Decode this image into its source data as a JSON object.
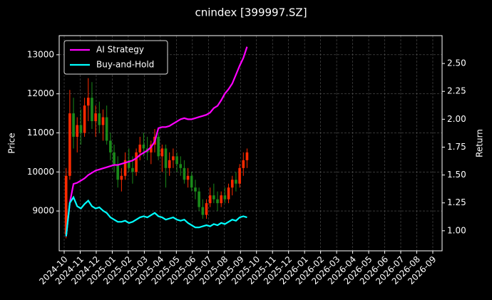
{
  "chart_data": {
    "type": "candlestick",
    "title": "cnindex [399997.SZ]",
    "ylabel": "Price",
    "y2label": "Return",
    "x": [
      2024.76,
      2024.7792,
      2024.7984,
      2024.8176,
      2024.8368,
      2024.856,
      2024.8752,
      2024.8944,
      2024.9136,
      2024.9328,
      2024.952,
      2024.9712,
      2024.9904,
      2025.0096,
      2025.0288,
      2025.048,
      2025.0672,
      2025.0864,
      2025.1056,
      2025.1248,
      2025.144,
      2025.1632,
      2025.1824,
      2025.2016,
      2025.2208,
      2025.24,
      2025.2592,
      2025.2784,
      2025.2976,
      2025.3168,
      2025.336,
      2025.3552,
      2025.3744,
      2025.3936,
      2025.4128,
      2025.432,
      2025.4512,
      2025.4704,
      2025.4896,
      2025.5088,
      2025.528,
      2025.5472,
      2025.5664,
      2025.5856,
      2025.6048,
      2025.624,
      2025.6432,
      2025.6624,
      2025.6816,
      2025.7008
    ],
    "open": [
      8400,
      9900,
      11500,
      10900,
      11200,
      11000,
      11700,
      11900,
      11300,
      11500,
      11200,
      11400,
      10800,
      10500,
      10200,
      9800,
      9900,
      10300,
      10100,
      10000,
      10500,
      10700,
      10600,
      10500,
      10700,
      10900,
      10400,
      10600,
      10100,
      10300,
      10400,
      10200,
      10100,
      9800,
      9900,
      9600,
      9500,
      9100,
      8900,
      9200,
      9400,
      9300,
      9200,
      9400,
      9300,
      9600,
      9800,
      9700,
      10100,
      10300
    ],
    "high": [
      10100,
      12100,
      11900,
      11400,
      11600,
      11900,
      12400,
      12300,
      11700,
      11800,
      11600,
      11700,
      11000,
      10700,
      10400,
      10100,
      10500,
      10600,
      10400,
      10600,
      10900,
      11000,
      10900,
      10800,
      11100,
      11000,
      10700,
      10700,
      10500,
      10600,
      10500,
      10400,
      10300,
      10100,
      10000,
      9800,
      9600,
      9300,
      9300,
      9600,
      9700,
      9500,
      9500,
      9600,
      9700,
      9900,
      10000,
      10200,
      10500,
      10600
    ],
    "low": [
      8300,
      9800,
      10600,
      10500,
      10700,
      10900,
      11300,
      11100,
      10900,
      11000,
      10800,
      10700,
      10300,
      10000,
      9600,
      9500,
      9800,
      10000,
      9700,
      9900,
      10300,
      10400,
      10300,
      10200,
      10500,
      10300,
      10000,
      9600,
      9900,
      10100,
      10000,
      9900,
      9700,
      9600,
      9500,
      9300,
      9000,
      8800,
      8800,
      9100,
      9200,
      9000,
      9100,
      9200,
      9200,
      9400,
      9500,
      9600,
      9900,
      10100
    ],
    "close": [
      9900,
      11500,
      10900,
      11200,
      11000,
      11700,
      11900,
      11300,
      11500,
      11200,
      11400,
      10800,
      10500,
      10200,
      9800,
      9900,
      10300,
      10100,
      10000,
      10500,
      10700,
      10600,
      10500,
      10700,
      10900,
      10400,
      10600,
      10100,
      10300,
      10400,
      10200,
      10100,
      9800,
      9900,
      9600,
      9500,
      9100,
      8900,
      9200,
      9400,
      9300,
      9200,
      9400,
      9300,
      9600,
      9800,
      9700,
      10100,
      10300,
      10500
    ],
    "up_color": "#ff2a00",
    "down_color": "#1a8a1a",
    "series": [
      {
        "name": "AI Strategy",
        "color": "#ff00ff",
        "axis": "y2",
        "values": [
          0.95,
          1.25,
          1.42,
          1.43,
          1.45,
          1.47,
          1.5,
          1.52,
          1.54,
          1.55,
          1.56,
          1.57,
          1.58,
          1.59,
          1.59,
          1.6,
          1.61,
          1.62,
          1.63,
          1.65,
          1.68,
          1.7,
          1.72,
          1.75,
          1.8,
          1.92,
          1.93,
          1.93,
          1.94,
          1.96,
          1.98,
          2.0,
          2.01,
          2.0,
          2.0,
          2.01,
          2.02,
          2.03,
          2.04,
          2.06,
          2.1,
          2.12,
          2.17,
          2.23,
          2.27,
          2.32,
          2.4,
          2.48,
          2.55,
          2.65
        ]
      },
      {
        "name": "Buy-and-Hold",
        "color": "#00ffff",
        "axis": "y2",
        "values": [
          0.95,
          1.25,
          1.3,
          1.22,
          1.2,
          1.24,
          1.27,
          1.22,
          1.2,
          1.21,
          1.18,
          1.16,
          1.12,
          1.1,
          1.08,
          1.08,
          1.09,
          1.07,
          1.08,
          1.1,
          1.12,
          1.13,
          1.12,
          1.14,
          1.16,
          1.13,
          1.12,
          1.1,
          1.11,
          1.12,
          1.1,
          1.09,
          1.1,
          1.07,
          1.05,
          1.03,
          1.03,
          1.04,
          1.05,
          1.04,
          1.06,
          1.05,
          1.07,
          1.06,
          1.08,
          1.1,
          1.09,
          1.12,
          1.13,
          1.12
        ]
      }
    ],
    "xlim": [
      2024.724,
      2026.715
    ],
    "xticks": [
      {
        "value": 2024.75,
        "label": "2024-10"
      },
      {
        "value": 2024.8333,
        "label": "2024-11"
      },
      {
        "value": 2024.9167,
        "label": "2024-12"
      },
      {
        "value": 2025.0,
        "label": "2025-01"
      },
      {
        "value": 2025.0833,
        "label": "2025-02"
      },
      {
        "value": 2025.1667,
        "label": "2025-03"
      },
      {
        "value": 2025.25,
        "label": "2025-04"
      },
      {
        "value": 2025.3333,
        "label": "2025-05"
      },
      {
        "value": 2025.4167,
        "label": "2025-06"
      },
      {
        "value": 2025.5,
        "label": "2025-07"
      },
      {
        "value": 2025.5833,
        "label": "2025-08"
      },
      {
        "value": 2025.6667,
        "label": "2025-09"
      },
      {
        "value": 2025.75,
        "label": "2025-10"
      },
      {
        "value": 2025.8333,
        "label": "2025-11"
      },
      {
        "value": 2025.9167,
        "label": "2025-12"
      },
      {
        "value": 2026.0,
        "label": "2026-01"
      },
      {
        "value": 2026.0833,
        "label": "2026-02"
      },
      {
        "value": 2026.1667,
        "label": "2026-03"
      },
      {
        "value": 2026.25,
        "label": "2026-04"
      },
      {
        "value": 2026.3333,
        "label": "2026-05"
      },
      {
        "value": 2026.4167,
        "label": "2026-06"
      },
      {
        "value": 2026.5,
        "label": "2026-07"
      },
      {
        "value": 2026.5833,
        "label": "2026-08"
      },
      {
        "value": 2026.6667,
        "label": "2026-09"
      }
    ],
    "ylim": [
      7980,
      13490
    ],
    "yticks": [
      9000,
      10000,
      11000,
      12000,
      13000
    ],
    "y2lim": [
      0.82,
      2.75
    ],
    "y2ticks": [
      {
        "value": 1,
        "label": "1.00"
      },
      {
        "value": 1.25,
        "label": "1.25"
      },
      {
        "value": 1.5,
        "label": "1.50"
      },
      {
        "value": 1.75,
        "label": "1.75"
      },
      {
        "value": 2,
        "label": "2.00"
      },
      {
        "value": 2.25,
        "label": "2.25"
      },
      {
        "value": 2.5,
        "label": "2.50"
      }
    ],
    "grid": true,
    "legend": "upper left"
  }
}
